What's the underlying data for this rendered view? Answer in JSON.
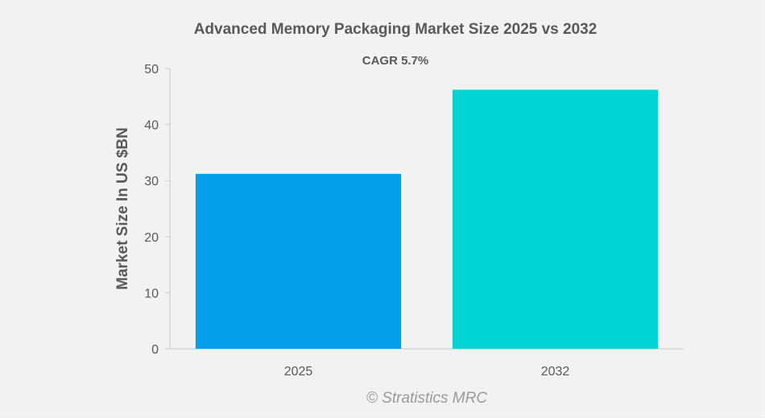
{
  "chart_data": {
    "type": "bar",
    "title": "Advanced Memory Packaging Market Size 2025 vs 2032",
    "subtitle": "CAGR 5.7%",
    "xlabel": "",
    "ylabel": "Market Size In US $BN",
    "categories": [
      "2025",
      "2032"
    ],
    "values": [
      31.2,
      46.2
    ],
    "colors": [
      "#039fe8",
      "#00d4d4"
    ],
    "ylim": [
      0,
      50
    ],
    "yticks": [
      0,
      10,
      20,
      30,
      40,
      50
    ],
    "grid": false,
    "legend": "none"
  },
  "watermark": "© Stratistics MRC"
}
